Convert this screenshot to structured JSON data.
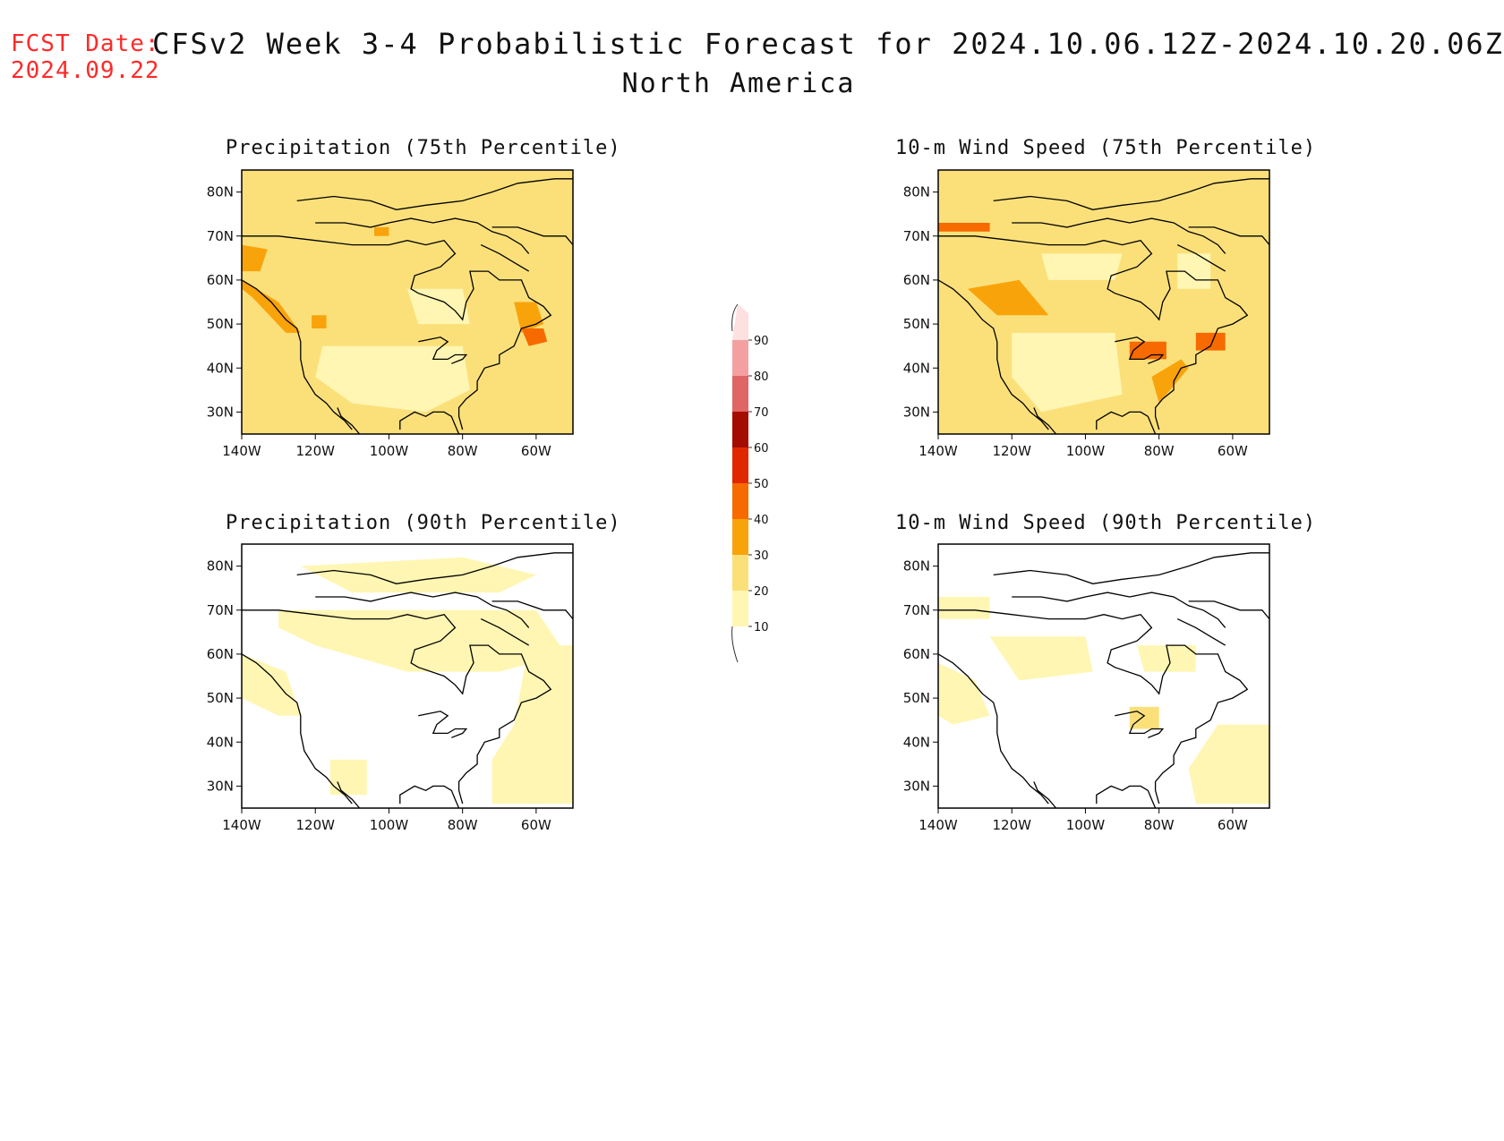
{
  "header": {
    "fcst_label": "FCST Date:",
    "fcst_date": "2024.09.22",
    "title": "CFSv2 Week 3-4 Probabilistic Forecast for 2024.10.06.12Z-2024.10.20.06Z",
    "region": "North America"
  },
  "axes": {
    "lon_ticks": [
      "140W",
      "120W",
      "100W",
      "80W",
      "60W"
    ],
    "lat_ticks": [
      "80N",
      "70N",
      "60N",
      "50N",
      "40N",
      "30N"
    ]
  },
  "panels": [
    {
      "title": "Precipitation (75th Percentile)",
      "variable": "precipitation",
      "percentile": 75
    },
    {
      "title": "10-m Wind Speed (75th Percentile)",
      "variable": "wind",
      "percentile": 75
    },
    {
      "title": "Precipitation (90th Percentile)",
      "variable": "precipitation",
      "percentile": 90
    },
    {
      "title": "10-m Wind Speed (90th Percentile)",
      "variable": "wind",
      "percentile": 90
    }
  ],
  "colorbar": {
    "levels": [
      "10",
      "20",
      "30",
      "40",
      "50",
      "60",
      "70",
      "80",
      "90"
    ],
    "colors": [
      "#fff6b3",
      "#fbe07a",
      "#f9a30b",
      "#f66a00",
      "#e02800",
      "#a50c00",
      "#e06565",
      "#f4a0a0",
      "#fde0e0"
    ]
  },
  "colors": {
    "fcst_text": "#ff2a2a",
    "coastline": "#000000",
    "land_fill_low": "#fff6b3",
    "fill_mid": "#fbe07a",
    "fill_high": "#f9a30b",
    "fill_higher": "#f66a00"
  }
}
